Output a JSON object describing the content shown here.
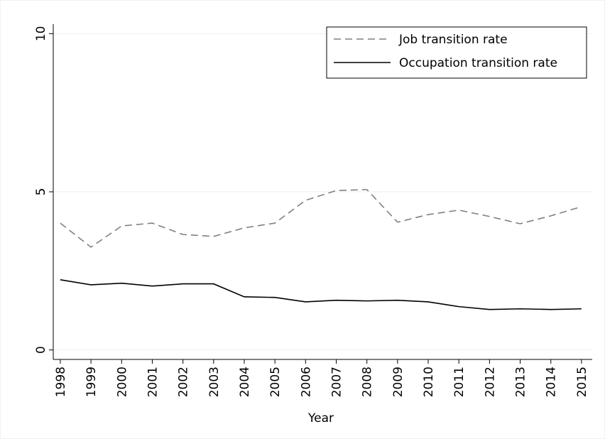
{
  "chart_data": {
    "type": "line",
    "x": [
      1998,
      1999,
      2000,
      2001,
      2002,
      2003,
      2004,
      2005,
      2006,
      2007,
      2008,
      2009,
      2010,
      2011,
      2012,
      2013,
      2014,
      2015
    ],
    "x_label": "Year",
    "series": [
      {
        "name": "Job transition rate",
        "color": "#808080",
        "dash": "dashed",
        "values": [
          4.01,
          3.25,
          3.92,
          4.01,
          3.65,
          3.59,
          3.86,
          4.01,
          4.73,
          5.04,
          5.07,
          4.04,
          4.28,
          4.42,
          4.22,
          3.99,
          4.24,
          4.53
        ]
      },
      {
        "name": "Occupation transition rate",
        "color": "#000000",
        "dash": "solid",
        "values": [
          2.22,
          2.06,
          2.11,
          2.02,
          2.09,
          2.09,
          1.68,
          1.66,
          1.52,
          1.57,
          1.55,
          1.57,
          1.52,
          1.37,
          1.28,
          1.3,
          1.28,
          1.3
        ]
      }
    ],
    "xlim": [
      1997.77,
      2015.35
    ],
    "xticks": [
      1998,
      1999,
      2000,
      2001,
      2002,
      2003,
      2004,
      2005,
      2006,
      2007,
      2008,
      2009,
      2010,
      2011,
      2012,
      2013,
      2014,
      2015
    ],
    "ylim": [
      -0.3,
      10.3
    ],
    "yticks": [
      0,
      5,
      10
    ],
    "grid": true,
    "legend": "top-right"
  }
}
